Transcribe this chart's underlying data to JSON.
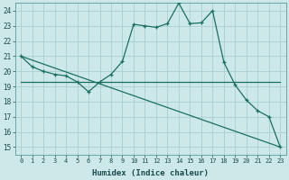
{
  "xlabel": "Humidex (Indice chaleur)",
  "bg_color": "#cce8e8",
  "line_color": "#1a7060",
  "grid_color": "#aacfcf",
  "xlim": [
    -0.5,
    23.5
  ],
  "ylim": [
    14.5,
    24.5
  ],
  "xticks": [
    0,
    1,
    2,
    3,
    4,
    5,
    6,
    7,
    8,
    9,
    10,
    11,
    12,
    13,
    14,
    15,
    16,
    17,
    18,
    19,
    20,
    21,
    22,
    23
  ],
  "yticks": [
    15,
    16,
    17,
    18,
    19,
    20,
    21,
    22,
    23,
    24
  ],
  "line1_x": [
    0,
    1,
    2,
    3,
    4,
    5,
    6,
    7,
    8,
    9,
    10,
    11,
    12,
    13,
    14,
    15,
    16,
    17,
    18,
    19,
    20,
    21,
    22,
    23
  ],
  "line1_y": [
    21.0,
    20.3,
    20.0,
    19.8,
    19.7,
    19.3,
    18.65,
    19.3,
    19.8,
    20.65,
    23.1,
    23.0,
    22.9,
    23.15,
    24.5,
    23.15,
    23.2,
    24.0,
    20.6,
    19.1,
    18.1,
    17.4,
    17.0,
    15.0
  ],
  "line2_x": [
    0,
    1,
    2,
    3,
    4,
    5,
    6,
    7,
    8,
    9,
    10,
    11,
    12,
    13,
    14,
    15,
    16,
    17,
    18,
    19,
    20,
    21,
    22,
    23
  ],
  "line2_y": [
    19.3,
    19.3,
    19.3,
    19.3,
    19.3,
    19.3,
    19.3,
    19.3,
    19.3,
    19.3,
    19.3,
    19.3,
    19.3,
    19.3,
    19.3,
    19.3,
    19.3,
    19.3,
    19.3,
    19.3,
    19.3,
    19.3,
    19.3,
    19.3
  ],
  "line3_x": [
    0,
    23
  ],
  "line3_y": [
    21.0,
    15.0
  ]
}
